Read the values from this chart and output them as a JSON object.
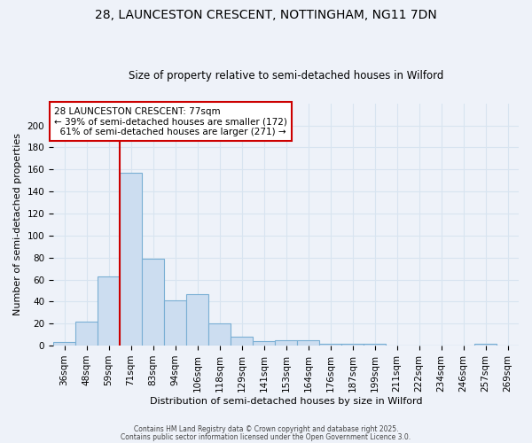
{
  "title": "28, LAUNCESTON CRESCENT, NOTTINGHAM, NG11 7DN",
  "subtitle": "Size of property relative to semi-detached houses in Wilford",
  "xlabel": "Distribution of semi-detached houses by size in Wilford",
  "ylabel": "Number of semi-detached properties",
  "categories": [
    "36sqm",
    "48sqm",
    "59sqm",
    "71sqm",
    "83sqm",
    "94sqm",
    "106sqm",
    "118sqm",
    "129sqm",
    "141sqm",
    "153sqm",
    "164sqm",
    "176sqm",
    "187sqm",
    "199sqm",
    "211sqm",
    "222sqm",
    "234sqm",
    "246sqm",
    "257sqm",
    "269sqm"
  ],
  "values": [
    3,
    22,
    63,
    157,
    79,
    41,
    47,
    20,
    8,
    4,
    5,
    5,
    2,
    2,
    2,
    0,
    0,
    0,
    0,
    2,
    0
  ],
  "bar_color": "#ccddf0",
  "bar_edge_color": "#7aafd4",
  "property_bin_index": 2.5,
  "annotation_line_color": "#cc0000",
  "annotation_box_color": "#ffffff",
  "annotation_box_edge_color": "#cc0000",
  "annotation_text_line1": "28 LAUNCESTON CRESCENT: 77sqm",
  "annotation_text_line2": "← 39% of semi-detached houses are smaller (172)",
  "annotation_text_line3": "  61% of semi-detached houses are larger (271) →",
  "footer_line1": "Contains HM Land Registry data © Crown copyright and database right 2025.",
  "footer_line2": "Contains public sector information licensed under the Open Government Licence 3.0.",
  "ylim": [
    0,
    220
  ],
  "yticks": [
    0,
    20,
    40,
    60,
    80,
    100,
    120,
    140,
    160,
    180,
    200
  ],
  "background_color": "#eef2f9",
  "grid_color": "#d8e4f0",
  "title_fontsize": 10,
  "subtitle_fontsize": 8.5,
  "tick_fontsize": 7.5,
  "ylabel_fontsize": 8,
  "xlabel_fontsize": 8,
  "annotation_fontsize": 7.5
}
